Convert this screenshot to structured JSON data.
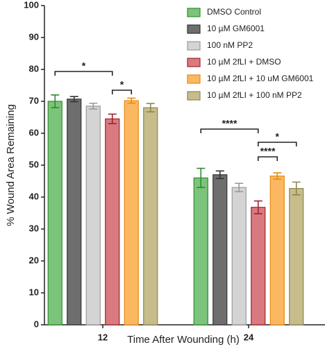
{
  "chart_data": {
    "type": "bar",
    "xlabel": "Time After Wounding (h)",
    "ylabel": "% Wound Area Remaining",
    "categories": [
      "12",
      "24"
    ],
    "ylim": [
      0,
      100
    ],
    "yticks": [
      0,
      10,
      20,
      30,
      40,
      50,
      60,
      70,
      80,
      90,
      100
    ],
    "legend": "upper right",
    "series": [
      {
        "name": "DMSO Control",
        "color": "#7cc47c",
        "edge": "#2e8b2e",
        "values": [
          70,
          46
        ],
        "errors": [
          2,
          3
        ]
      },
      {
        "name": "10 µM GM6001",
        "color": "#6e6e6e",
        "edge": "#333333",
        "values": [
          70.7,
          47
        ],
        "errors": [
          0.8,
          1.2
        ]
      },
      {
        "name": "100 nM PP2",
        "color": "#d4d4d4",
        "edge": "#9a9a9a",
        "values": [
          68.5,
          43
        ],
        "errors": [
          0.9,
          1.3
        ]
      },
      {
        "name": "10 µM 2fLI + DMSO",
        "color": "#d97a80",
        "edge": "#a3222a",
        "values": [
          64.5,
          36.8
        ],
        "errors": [
          1.5,
          2
        ]
      },
      {
        "name": "10 µM 2fLI + 10 uM GM6001",
        "color": "#fbb861",
        "edge": "#e58a10",
        "values": [
          70.2,
          46.6
        ],
        "errors": [
          0.8,
          1
        ]
      },
      {
        "name": "10 µM 2fLI + 100 nM PP2",
        "color": "#c6bc8c",
        "edge": "#8f8650",
        "values": [
          68,
          42.7
        ],
        "errors": [
          1.3,
          2
        ]
      }
    ],
    "annotations": [
      "*",
      "*",
      "****",
      "*",
      "****"
    ]
  }
}
